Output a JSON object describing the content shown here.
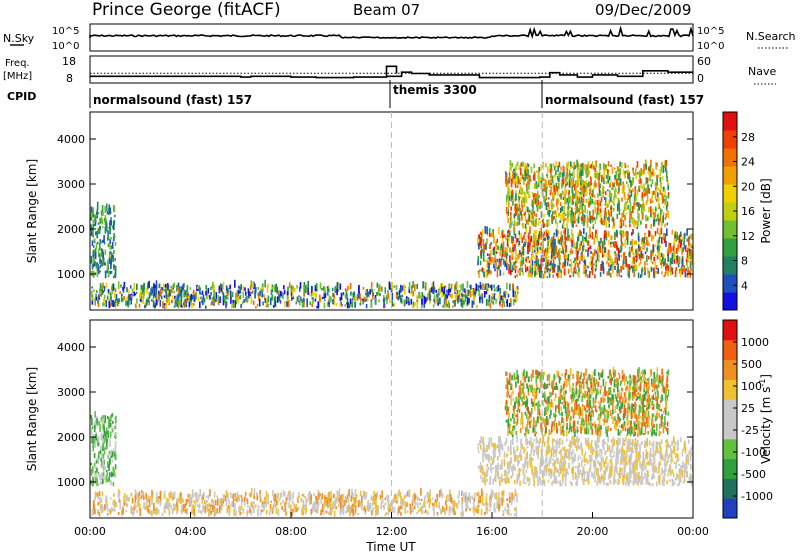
{
  "header": {
    "station": "Prince George (fitACF)",
    "beam": "Beam 07",
    "date": "09/Dec/2009"
  },
  "chart_data": [
    {
      "type": "line",
      "panel": "noise",
      "left_label": "N.Sky",
      "right_label": "N.Search",
      "left_ticks": [
        "10^5",
        "10^0"
      ],
      "right_ticks": [
        "10^5",
        "10^0"
      ]
    },
    {
      "type": "line",
      "panel": "frequency",
      "left_label_top": "Freq.",
      "left_label_bottom": "[MHz]",
      "right_label": "Nave",
      "left_ticks": [
        18,
        8
      ],
      "right_ticks": [
        60,
        0
      ],
      "freq_steps": [
        {
          "t": 0.0,
          "v": 10.5
        },
        {
          "t": 6.0,
          "v": 10.2
        },
        {
          "t": 6.4,
          "v": 10.5
        },
        {
          "t": 8.0,
          "v": 10.2
        },
        {
          "t": 9.0,
          "v": 10.0
        },
        {
          "t": 10.5,
          "v": 10.2
        },
        {
          "t": 11.8,
          "v": 10.5
        },
        {
          "t": 12.0,
          "v": 10.5
        },
        {
          "t": 12.4,
          "v": 12.0
        },
        {
          "t": 12.8,
          "v": 11.5
        },
        {
          "t": 13.5,
          "v": 11.0
        },
        {
          "t": 15.5,
          "v": 10.0
        },
        {
          "t": 17.9,
          "v": 10.2
        },
        {
          "t": 18.3,
          "v": 11.8
        },
        {
          "t": 18.7,
          "v": 11.0
        },
        {
          "t": 19.4,
          "v": 10.2
        },
        {
          "t": 20.0,
          "v": 11.0
        },
        {
          "t": 21.0,
          "v": 10.5
        },
        {
          "t": 22.0,
          "v": 12.5
        },
        {
          "t": 23.0,
          "v": 12.0
        },
        {
          "t": 24.0,
          "v": 12.0
        }
      ],
      "freq_bumps": [
        {
          "t0": 11.8,
          "t1": 12.2,
          "v": 14.2
        }
      ]
    },
    {
      "type": "table",
      "panel": "cpid",
      "label": "CPID",
      "modes": [
        {
          "name": "normalsound (fast) 157",
          "start": 0
        },
        {
          "name": "themis 3300",
          "start": 12
        },
        {
          "name": "normalsound (fast) 157",
          "start": 18
        }
      ]
    },
    {
      "type": "heatmap",
      "panel": "power",
      "ylabel": "Slant Range [km]",
      "y_ticks": [
        1000,
        2000,
        3000,
        4000
      ],
      "ylim": [
        200,
        4600
      ],
      "colorbar_label": "Power [dB]",
      "colorbar_ticks": [
        "28",
        "24",
        "20",
        "16",
        "12",
        "8",
        "4"
      ],
      "colors": [
        "#1010e0",
        "#2050c0",
        "#208060",
        "#30a040",
        "#70c030",
        "#c0d010",
        "#f0d000",
        "#f0a000",
        "#f07000",
        "#f04000",
        "#e01010"
      ],
      "regions": [
        {
          "t0": 0.0,
          "t1": 1.0,
          "r0": 900,
          "r1": 2450,
          "c": [
            1,
            2,
            3,
            4
          ]
        },
        {
          "t0": 0.0,
          "t1": 17.0,
          "r0": 230,
          "r1": 700,
          "c": [
            0,
            1,
            2,
            3,
            4,
            6,
            8
          ]
        },
        {
          "t0": 15.4,
          "t1": 24.0,
          "r0": 900,
          "r1": 1900,
          "c": [
            1,
            2,
            3,
            5,
            6,
            7,
            8,
            9,
            10
          ]
        },
        {
          "t0": 16.5,
          "t1": 23.0,
          "r0": 2000,
          "r1": 3400,
          "c": [
            2,
            3,
            4,
            5,
            6,
            7,
            8,
            9
          ]
        }
      ]
    },
    {
      "type": "heatmap",
      "panel": "velocity",
      "ylabel": "Slant Range [km]",
      "y_ticks": [
        1000,
        2000,
        3000,
        4000
      ],
      "ylim": [
        200,
        4600
      ],
      "colorbar_label": "Velocity [m s",
      "colorbar_exp": "-1",
      "colorbar_ticks": [
        "1000",
        "500",
        "100",
        "25",
        "-25",
        "-100",
        "-500",
        "-1000"
      ],
      "colors": [
        "#2040c0",
        "#207060",
        "#30a040",
        "#60c040",
        "#c8c8c8",
        "#c8c8c8",
        "#f0c030",
        "#f09020",
        "#f06010",
        "#e01010"
      ],
      "regions": [
        {
          "t0": 0.0,
          "t1": 1.0,
          "r0": 900,
          "r1": 2450,
          "c": [
            2,
            3,
            4
          ]
        },
        {
          "t0": 0.0,
          "t1": 17.0,
          "r0": 230,
          "r1": 700,
          "c": [
            4,
            5,
            6,
            7
          ]
        },
        {
          "t0": 15.4,
          "t1": 24.0,
          "r0": 900,
          "r1": 1900,
          "c": [
            4,
            5,
            6
          ]
        },
        {
          "t0": 16.5,
          "t1": 23.0,
          "r0": 2000,
          "r1": 3400,
          "c": [
            2,
            3,
            6,
            7,
            8
          ]
        }
      ],
      "x_ticks": [
        "00:00",
        "04:00",
        "08:00",
        "12:00",
        "16:00",
        "20:00",
        "00:00"
      ],
      "xlabel": "Time UT",
      "xlim": [
        0,
        24
      ]
    }
  ]
}
